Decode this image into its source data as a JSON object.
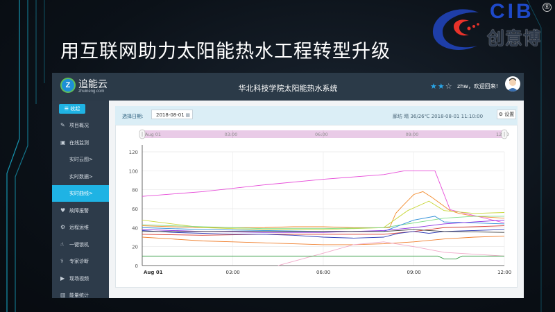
{
  "slide": {
    "title": "用互联网助力太阳能热水工程转型升级",
    "logo_latin": "CIB",
    "logo_chinese": "创意博",
    "logo_mark": "®"
  },
  "app": {
    "brand_name": "追能云",
    "brand_url": "zhuineng.com",
    "system_title": "华北科技学院太阳能热水系统",
    "stars_filled": 2,
    "stars_total": 3,
    "welcome": "zhw，欢迎回来!",
    "colors": {
      "topbar": "#2b3a48",
      "sidebar": "#2d3b4a",
      "accent": "#1fb3e4"
    }
  },
  "sidebar": {
    "collapse_label": "☰ 收起",
    "items": [
      {
        "icon": "edit-icon",
        "glyph": "✎",
        "label": "项目概况",
        "sub": false,
        "active": false
      },
      {
        "icon": "image-icon",
        "glyph": "▣",
        "label": "在线监测",
        "sub": false,
        "active": false
      },
      {
        "icon": "",
        "glyph": "",
        "label": "实时云图>",
        "sub": true,
        "active": false
      },
      {
        "icon": "",
        "glyph": "",
        "label": "实时数据>",
        "sub": true,
        "active": false
      },
      {
        "icon": "",
        "glyph": "",
        "label": "实时曲线>",
        "sub": true,
        "active": true
      },
      {
        "icon": "heart-icon",
        "glyph": "♥",
        "label": "故障报警",
        "sub": false,
        "active": false
      },
      {
        "icon": "gears-icon",
        "glyph": "⚙",
        "label": "远程运维",
        "sub": false,
        "active": false
      },
      {
        "icon": "hand-icon",
        "glyph": "☝",
        "label": "一键锁机",
        "sub": false,
        "active": false
      },
      {
        "icon": "user-doctor-icon",
        "glyph": "⚕",
        "label": "专家诊断",
        "sub": false,
        "active": false
      },
      {
        "icon": "video-icon",
        "glyph": "▶",
        "label": "现场视频",
        "sub": false,
        "active": false
      },
      {
        "icon": "bar-chart-icon",
        "glyph": "▥",
        "label": "能量统计",
        "sub": false,
        "active": false
      }
    ]
  },
  "toolbar": {
    "date_label": "选择日期:",
    "date_value": "2018-08-01",
    "weather": "廊坊 晴 36/26℃ 2018-08-01 11:10:00",
    "settings_label": "⚙ 设置"
  },
  "chart_data": {
    "type": "line",
    "y_ticks": [
      "0",
      "20",
      "40",
      "60",
      "80",
      "100",
      "120"
    ],
    "ylim": [
      0,
      120
    ],
    "x_ticks": [
      "Aug 01",
      "03:00",
      "06:00",
      "09:00",
      "12:00"
    ],
    "xlim_hours": [
      0,
      12
    ],
    "navigator_ticks": [
      "Aug 01",
      "03:00",
      "06:00",
      "09:00",
      "12:00"
    ],
    "navigator_range_hours": [
      0,
      12
    ],
    "series": [
      {
        "color": "#e64bd8",
        "points": [
          [
            0,
            73
          ],
          [
            2,
            78
          ],
          [
            4,
            85
          ],
          [
            6,
            91
          ],
          [
            8,
            96
          ],
          [
            8.7,
            100
          ],
          [
            9.7,
            100
          ],
          [
            10.2,
            59
          ],
          [
            12,
            45
          ]
        ]
      },
      {
        "color": "#f28b2c",
        "points": [
          [
            0,
            42
          ],
          [
            1,
            41
          ],
          [
            2,
            40
          ],
          [
            3,
            40
          ],
          [
            4,
            40
          ],
          [
            5,
            41
          ],
          [
            6,
            41
          ],
          [
            7,
            40
          ],
          [
            8.2,
            40
          ],
          [
            8.4,
            55
          ],
          [
            8.6,
            62
          ],
          [
            9,
            75
          ],
          [
            9.3,
            78
          ],
          [
            9.6,
            72
          ],
          [
            10.2,
            58
          ],
          [
            10.5,
            55
          ],
          [
            11,
            52
          ],
          [
            12,
            50
          ]
        ]
      },
      {
        "color": "#c8d73a",
        "points": [
          [
            0,
            48
          ],
          [
            1,
            44
          ],
          [
            2,
            40
          ],
          [
            4,
            38
          ],
          [
            6,
            38
          ],
          [
            8,
            40
          ],
          [
            8.8,
            58
          ],
          [
            9.5,
            68
          ],
          [
            10,
            58
          ],
          [
            11,
            55
          ],
          [
            12,
            56
          ]
        ]
      },
      {
        "color": "#7fdc88",
        "points": [
          [
            0,
            43
          ],
          [
            2,
            41
          ],
          [
            4,
            39
          ],
          [
            6,
            39
          ],
          [
            8,
            40
          ],
          [
            9,
            45
          ],
          [
            10,
            50
          ],
          [
            11,
            52
          ],
          [
            12,
            52
          ]
        ]
      },
      {
        "color": "#2f8fd8",
        "points": [
          [
            0,
            40
          ],
          [
            2,
            38
          ],
          [
            4,
            37
          ],
          [
            6,
            36
          ],
          [
            8,
            36
          ],
          [
            8.5,
            42
          ],
          [
            9,
            48
          ],
          [
            9.7,
            52
          ],
          [
            10,
            46
          ],
          [
            12,
            44
          ]
        ]
      },
      {
        "color": "#8a2be2",
        "points": [
          [
            0,
            38
          ],
          [
            2,
            36
          ],
          [
            4,
            35
          ],
          [
            6,
            35
          ],
          [
            8,
            37
          ],
          [
            9,
            40
          ],
          [
            10,
            44
          ],
          [
            11,
            46
          ],
          [
            12,
            48
          ]
        ]
      },
      {
        "color": "#d7392f",
        "points": [
          [
            0,
            33
          ],
          [
            2,
            32
          ],
          [
            4,
            33
          ],
          [
            6,
            33
          ],
          [
            8,
            33
          ],
          [
            9,
            36
          ],
          [
            10,
            40
          ],
          [
            11,
            41
          ],
          [
            12,
            42
          ]
        ]
      },
      {
        "color": "#2d3ab5",
        "points": [
          [
            0,
            37
          ],
          [
            1,
            35
          ],
          [
            2,
            34
          ],
          [
            3,
            33
          ],
          [
            4,
            33
          ],
          [
            5,
            32
          ],
          [
            6,
            30
          ],
          [
            7,
            29
          ],
          [
            8,
            30
          ],
          [
            8.5,
            34
          ],
          [
            9,
            36
          ],
          [
            9.5,
            34
          ],
          [
            10,
            36
          ],
          [
            11,
            37
          ],
          [
            12,
            38
          ]
        ]
      },
      {
        "color": "#ef7d2a",
        "points": [
          [
            0,
            30
          ],
          [
            1,
            28
          ],
          [
            2,
            26
          ],
          [
            3,
            25
          ],
          [
            4,
            24
          ],
          [
            5,
            23
          ],
          [
            6,
            22
          ],
          [
            7,
            22
          ],
          [
            8,
            23
          ],
          [
            9,
            25
          ],
          [
            10,
            28
          ],
          [
            11,
            30
          ],
          [
            12,
            31
          ]
        ]
      },
      {
        "color": "#3c3c3c",
        "points": [
          [
            0,
            36
          ],
          [
            3,
            36
          ],
          [
            6,
            36
          ],
          [
            8,
            36
          ],
          [
            9,
            38
          ],
          [
            10,
            36
          ],
          [
            12,
            35
          ]
        ]
      },
      {
        "color": "#f0a8c8",
        "points": [
          [
            4.5,
            0
          ],
          [
            6,
            13
          ],
          [
            7,
            22
          ],
          [
            8,
            25
          ],
          [
            9,
            20
          ],
          [
            10,
            14
          ],
          [
            12,
            10
          ]
        ]
      },
      {
        "color": "#2e9a3e",
        "points": [
          [
            0,
            10
          ],
          [
            9.8,
            10
          ],
          [
            10,
            7
          ],
          [
            10.4,
            7
          ],
          [
            10.6,
            10
          ],
          [
            12,
            10
          ]
        ]
      }
    ]
  }
}
